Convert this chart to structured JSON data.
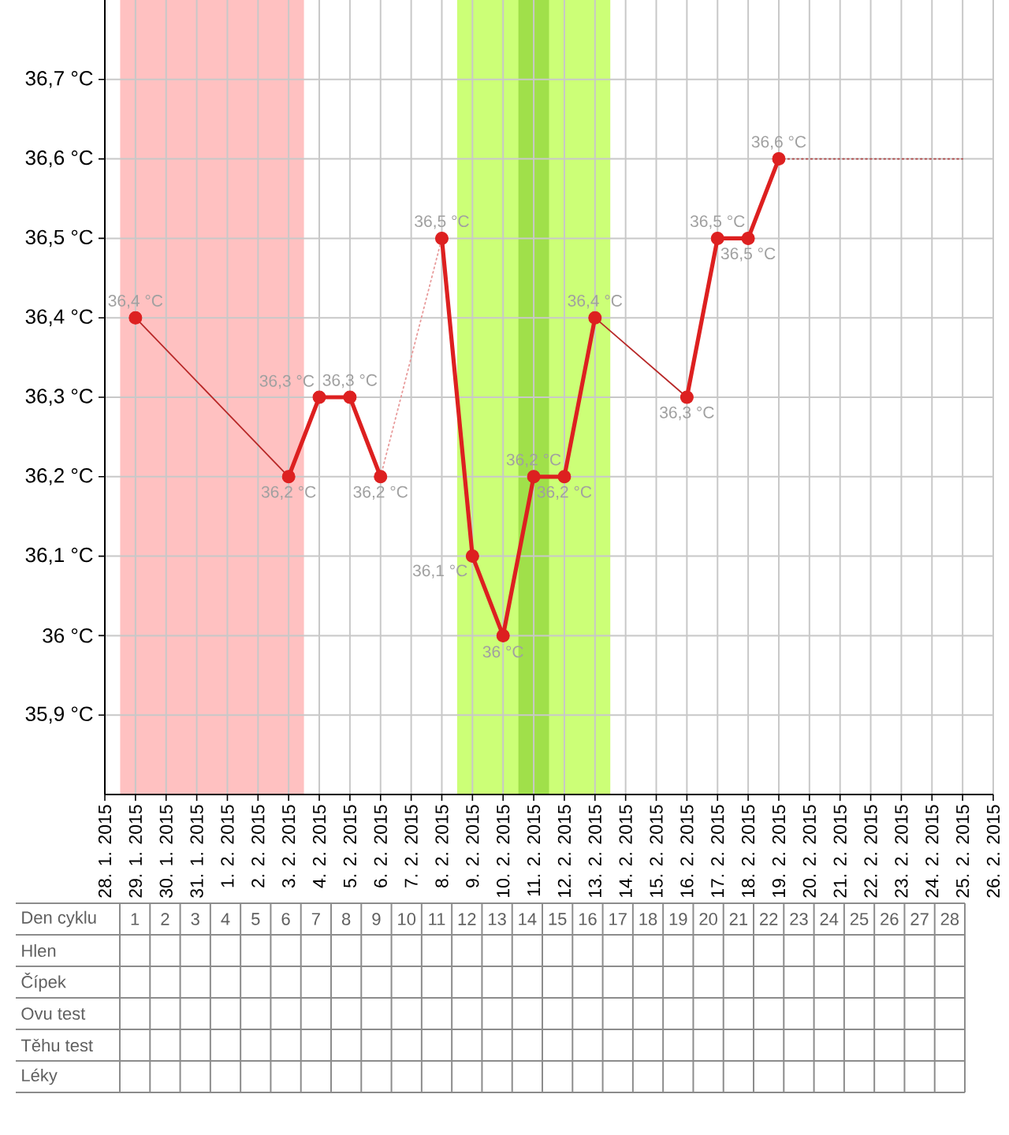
{
  "chart_data": [
    {
      "type": "line",
      "xlim": [
        "2015-01-28",
        "2015-02-26"
      ],
      "ylim": [
        35.8,
        36.8
      ],
      "xticks": [
        {
          "value": "2015-01-28",
          "label": "28. 1. 2015"
        },
        {
          "value": "2015-01-29",
          "label": "29. 1. 2015"
        },
        {
          "value": "2015-01-30",
          "label": "30. 1. 2015"
        },
        {
          "value": "2015-01-31",
          "label": "31. 1. 2015"
        },
        {
          "value": "2015-02-01",
          "label": "1. 2. 2015"
        },
        {
          "value": "2015-02-02",
          "label": "2. 2. 2015"
        },
        {
          "value": "2015-02-03",
          "label": "3. 2. 2015"
        },
        {
          "value": "2015-02-04",
          "label": "4. 2. 2015"
        },
        {
          "value": "2015-02-05",
          "label": "5. 2. 2015"
        },
        {
          "value": "2015-02-06",
          "label": "6. 2. 2015"
        },
        {
          "value": "2015-02-07",
          "label": "7. 2. 2015"
        },
        {
          "value": "2015-02-08",
          "label": "8. 2. 2015"
        },
        {
          "value": "2015-02-09",
          "label": "9. 2. 2015"
        },
        {
          "value": "2015-02-10",
          "label": "10. 2. 2015"
        },
        {
          "value": "2015-02-11",
          "label": "11. 2. 2015"
        },
        {
          "value": "2015-02-12",
          "label": "12. 2. 2015"
        },
        {
          "value": "2015-02-13",
          "label": "13. 2. 2015"
        },
        {
          "value": "2015-02-14",
          "label": "14. 2. 2015"
        },
        {
          "value": "2015-02-15",
          "label": "15. 2. 2015"
        },
        {
          "value": "2015-02-16",
          "label": "16. 2. 2015"
        },
        {
          "value": "2015-02-17",
          "label": "17. 2. 2015"
        },
        {
          "value": "2015-02-18",
          "label": "18. 2. 2015"
        },
        {
          "value": "2015-02-19",
          "label": "19. 2. 2015"
        },
        {
          "value": "2015-02-20",
          "label": "20. 2. 2015"
        },
        {
          "value": "2015-02-21",
          "label": "21. 2. 2015"
        },
        {
          "value": "2015-02-22",
          "label": "22. 2. 2015"
        },
        {
          "value": "2015-02-23",
          "label": "23. 2. 2015"
        },
        {
          "value": "2015-02-24",
          "label": "24. 2. 2015"
        },
        {
          "value": "2015-02-25",
          "label": "25. 2. 2015"
        },
        {
          "value": "2015-02-26",
          "label": "26. 2. 2015"
        }
      ],
      "yticks": [
        {
          "value": 35.9,
          "label": "35,9 °C"
        },
        {
          "value": 36,
          "label": "36 °C"
        },
        {
          "value": 36.1,
          "label": "36,1 °C"
        },
        {
          "value": 36.2,
          "label": "36,2 °C"
        },
        {
          "value": 36.3,
          "label": "36,3 °C"
        },
        {
          "value": 36.4,
          "label": "36,4 °C"
        },
        {
          "value": 36.5,
          "label": "36,5 °C"
        },
        {
          "value": 36.6,
          "label": "36,6 °C"
        },
        {
          "value": 36.7,
          "label": "36,7 °C"
        }
      ],
      "grid": true,
      "marker": "circle",
      "line_style": "solid",
      "bands": [
        {
          "axis": "x",
          "from": "2015-01-28T12:00",
          "to": "2015-02-03T12:00",
          "color": "#ffc1c1"
        },
        {
          "axis": "x",
          "from": "2015-02-08T12:00",
          "to": "2015-02-13T12:00",
          "color": "#ccff77"
        },
        {
          "axis": "x",
          "from": "2015-02-10T12:00",
          "to": "2015-02-11T12:00",
          "color": "#a0e04a"
        }
      ],
      "series": [
        {
          "color": "#dd2020",
          "x": [
            "2015-01-29",
            "2015-01-30",
            "2015-01-31",
            "2015-02-01",
            "2015-02-02",
            "2015-02-03",
            "2015-02-04",
            "2015-02-05",
            "2015-02-06",
            "2015-02-07",
            "2015-02-08",
            "2015-02-09",
            "2015-02-10",
            "2015-02-11",
            "2015-02-12",
            "2015-02-13",
            "2015-02-14",
            "2015-02-15",
            "2015-02-16",
            "2015-02-17",
            "2015-02-18",
            "2015-02-19"
          ],
          "values": [
            36.4,
            null,
            null,
            null,
            null,
            36.2,
            36.3,
            36.3,
            36.2,
            null,
            36.5,
            36.1,
            36,
            36.2,
            36.2,
            36.4,
            null,
            null,
            36.3,
            36.5,
            36.5,
            36.6
          ],
          "value_labels": [
            "36,4 °C",
            null,
            null,
            null,
            null,
            "36,2 °C",
            "36,3 °C",
            "36,3 °C",
            "36,2 °C",
            null,
            "36,5 °C",
            "36,1 °C",
            "36 °C",
            "36,2 °C",
            "36,2 °C",
            "36,4 °C",
            null,
            null,
            "36,3 °C",
            "36,5 °C",
            "36,5 °C",
            "36,6 °C"
          ]
        },
        {
          "color": "#b82828",
          "marker": "none",
          "x": [
            "2015-01-29",
            "2015-02-03"
          ],
          "values": [
            36.4,
            36.2
          ]
        },
        {
          "color": "#e89a9a",
          "marker": "none",
          "line_style": "dotted",
          "x": [
            "2015-02-06",
            "2015-02-08"
          ],
          "values": [
            36.2,
            36.5
          ]
        },
        {
          "color": "#b82828",
          "marker": "none",
          "x": [
            "2015-02-13",
            "2015-02-16"
          ],
          "values": [
            36.4,
            36.3
          ]
        },
        {
          "color": "#b04848",
          "marker": "none",
          "line_style": "dotted",
          "x": [
            "2015-02-19",
            "2015-02-25"
          ],
          "values": [
            36.6,
            36.6
          ]
        }
      ]
    },
    {
      "type": "heatmap",
      "xlabel": "Den cyklu",
      "categories": [
        "1",
        "2",
        "3",
        "4",
        "5",
        "6",
        "7",
        "8",
        "9",
        "10",
        "11",
        "12",
        "13",
        "14",
        "15",
        "16",
        "17",
        "18",
        "19",
        "20",
        "21",
        "22",
        "23",
        "24",
        "25",
        "26",
        "27",
        "28"
      ],
      "y_categories": [
        "Hlen",
        "Čípek",
        "Ovu test",
        "Těhu test",
        "Léky"
      ],
      "cells": [
        [
          null,
          null,
          null,
          null,
          null,
          null,
          null,
          null,
          null,
          null,
          null,
          null,
          null,
          null,
          null,
          null,
          null,
          null,
          null,
          null,
          null,
          null,
          null,
          null,
          null,
          null,
          null,
          null
        ],
        [
          null,
          null,
          null,
          null,
          null,
          null,
          null,
          null,
          null,
          null,
          null,
          null,
          null,
          null,
          null,
          null,
          null,
          null,
          null,
          null,
          null,
          null,
          null,
          null,
          null,
          null,
          null,
          null
        ],
        [
          null,
          null,
          null,
          null,
          null,
          null,
          null,
          null,
          null,
          null,
          null,
          null,
          null,
          null,
          null,
          null,
          null,
          null,
          null,
          null,
          null,
          null,
          null,
          null,
          null,
          null,
          null,
          null
        ],
        [
          null,
          null,
          null,
          null,
          null,
          null,
          null,
          null,
          null,
          null,
          null,
          null,
          null,
          null,
          null,
          null,
          null,
          null,
          null,
          null,
          null,
          null,
          null,
          null,
          null,
          null,
          null,
          null
        ],
        [
          null,
          null,
          null,
          null,
          null,
          null,
          null,
          null,
          null,
          null,
          null,
          null,
          null,
          null,
          null,
          null,
          null,
          null,
          null,
          null,
          null,
          null,
          null,
          null,
          null,
          null,
          null,
          null
        ]
      ]
    }
  ]
}
